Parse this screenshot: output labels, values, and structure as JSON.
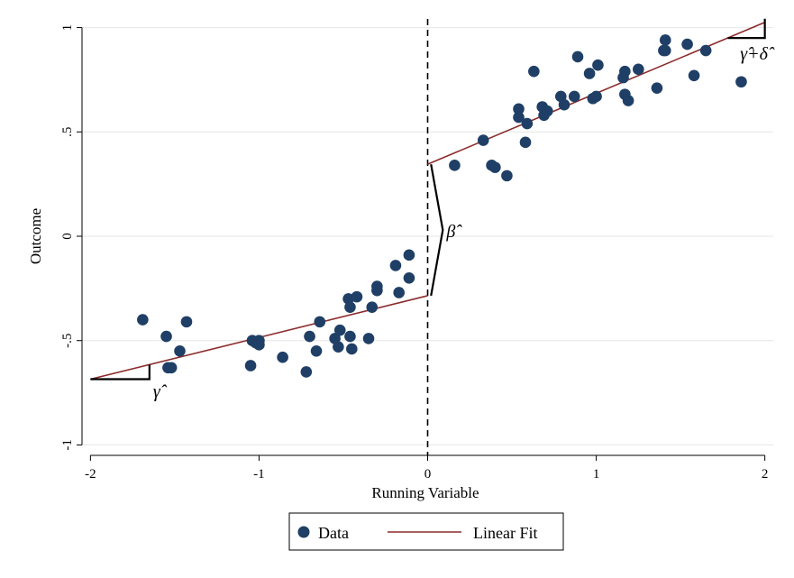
{
  "chart_data": {
    "type": "scatter",
    "xlabel": "Running Variable",
    "ylabel": "Outcome",
    "xlim": [
      -2.05,
      2.05
    ],
    "ylim": [
      -1.05,
      1.05
    ],
    "x_ticks": [
      -2,
      -1,
      0,
      1,
      2
    ],
    "x_tick_labels": [
      "-2",
      "-1",
      "0",
      "1",
      "2"
    ],
    "y_ticks": [
      -1,
      -0.5,
      0,
      0.5,
      1
    ],
    "y_tick_labels": [
      "-1",
      "-.5",
      "0",
      ".5",
      "1"
    ],
    "grid": "horizontal",
    "cutoff": 0,
    "colors": {
      "points": "#1f3f66",
      "fit": "#8b2b2b"
    },
    "series": [
      {
        "name": "Data",
        "kind": "scatter",
        "points": [
          [
            -1.69,
            -0.4
          ],
          [
            -1.55,
            -0.48
          ],
          [
            -1.52,
            -0.63
          ],
          [
            -1.54,
            -0.63
          ],
          [
            -1.47,
            -0.55
          ],
          [
            -1.43,
            -0.41
          ],
          [
            -1.05,
            -0.62
          ],
          [
            -1.04,
            -0.5
          ],
          [
            -1.02,
            -0.51
          ],
          [
            -1.0,
            -0.52
          ],
          [
            -1.0,
            -0.5
          ],
          [
            -0.86,
            -0.58
          ],
          [
            -0.72,
            -0.65
          ],
          [
            -0.7,
            -0.48
          ],
          [
            -0.66,
            -0.55
          ],
          [
            -0.64,
            -0.41
          ],
          [
            -0.55,
            -0.49
          ],
          [
            -0.53,
            -0.53
          ],
          [
            -0.52,
            -0.45
          ],
          [
            -0.47,
            -0.3
          ],
          [
            -0.46,
            -0.34
          ],
          [
            -0.46,
            -0.48
          ],
          [
            -0.45,
            -0.54
          ],
          [
            -0.42,
            -0.29
          ],
          [
            -0.35,
            -0.49
          ],
          [
            -0.33,
            -0.34
          ],
          [
            -0.3,
            -0.26
          ],
          [
            -0.3,
            -0.24
          ],
          [
            -0.19,
            -0.14
          ],
          [
            -0.17,
            -0.27
          ],
          [
            -0.11,
            -0.2
          ],
          [
            -0.11,
            -0.09
          ],
          [
            0.16,
            0.34
          ],
          [
            0.33,
            0.46
          ],
          [
            0.38,
            0.34
          ],
          [
            0.4,
            0.33
          ],
          [
            0.47,
            0.29
          ],
          [
            0.54,
            0.61
          ],
          [
            0.54,
            0.57
          ],
          [
            0.58,
            0.45
          ],
          [
            0.59,
            0.54
          ],
          [
            0.63,
            0.79
          ],
          [
            0.68,
            0.62
          ],
          [
            0.69,
            0.58
          ],
          [
            0.71,
            0.6
          ],
          [
            0.79,
            0.67
          ],
          [
            0.81,
            0.63
          ],
          [
            0.87,
            0.67
          ],
          [
            0.89,
            0.86
          ],
          [
            0.96,
            0.78
          ],
          [
            0.98,
            0.66
          ],
          [
            1.0,
            0.67
          ],
          [
            1.01,
            0.82
          ],
          [
            1.16,
            0.76
          ],
          [
            1.17,
            0.79
          ],
          [
            1.17,
            0.68
          ],
          [
            1.19,
            0.65
          ],
          [
            1.25,
            0.8
          ],
          [
            1.36,
            0.71
          ],
          [
            1.4,
            0.89
          ],
          [
            1.41,
            0.94
          ],
          [
            1.41,
            0.89
          ],
          [
            1.54,
            0.92
          ],
          [
            1.58,
            0.77
          ],
          [
            1.65,
            0.89
          ],
          [
            1.86,
            0.74
          ]
        ]
      },
      {
        "name": "Linear Fit",
        "kind": "line",
        "segments": [
          [
            [
              -2.0,
              -0.685
            ],
            [
              0.0,
              -0.285
            ]
          ],
          [
            [
              0.0,
              0.345
            ],
            [
              2.0,
              1.025
            ]
          ]
        ]
      }
    ],
    "annotations": {
      "gamma": "γ̂",
      "beta": "β̂",
      "gamma_delta": "γ̂+δ̂"
    },
    "legend": {
      "placement": "bottom-center",
      "items": [
        "Data",
        "Linear Fit"
      ]
    }
  }
}
